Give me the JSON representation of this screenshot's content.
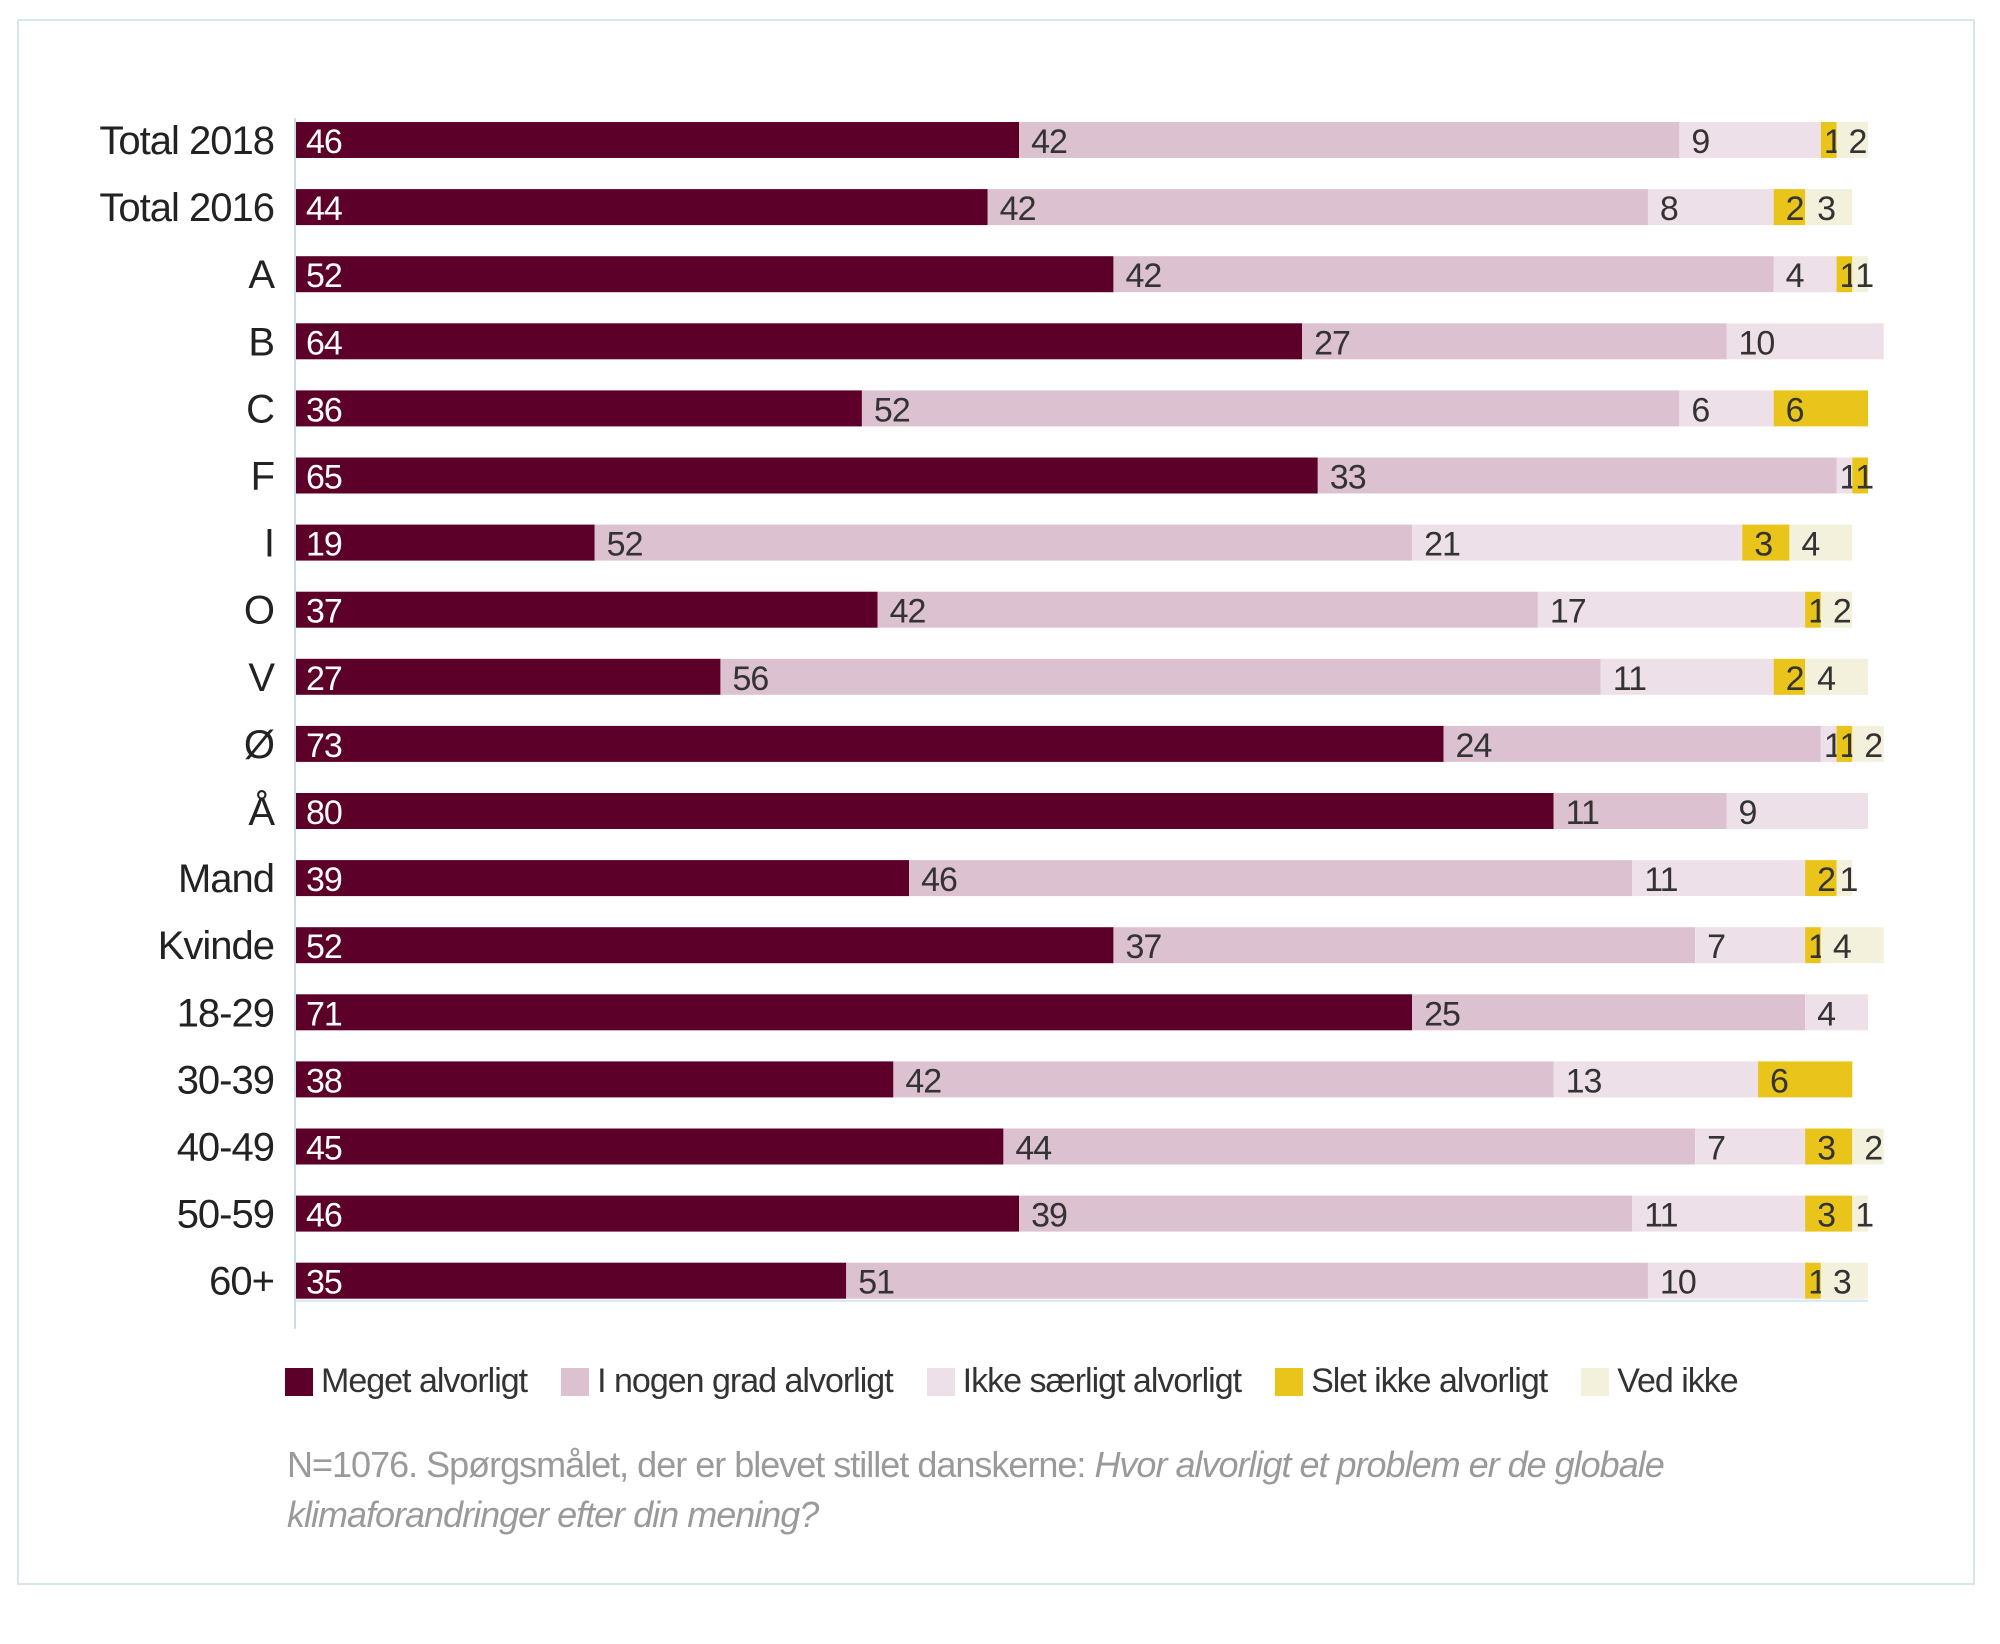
{
  "chart_data": {
    "type": "bar",
    "orientation": "horizontal",
    "stacked": true,
    "categories": [
      "Total 2018",
      "Total 2016",
      "A",
      "B",
      "C",
      "F",
      "I",
      "O",
      "V",
      "Ø",
      "Å",
      "Mand",
      "Kvinde",
      "18-29",
      "30-39",
      "40-49",
      "50-59",
      "60+"
    ],
    "series": [
      {
        "name": "Meget alvorligt",
        "color": "#5c0029",
        "values": [
          46,
          44,
          52,
          64,
          36,
          65,
          19,
          37,
          27,
          73,
          80,
          39,
          52,
          71,
          38,
          45,
          46,
          35
        ]
      },
      {
        "name": "I nogen grad alvorligt",
        "color": "#dcc1d0",
        "values": [
          42,
          42,
          42,
          27,
          52,
          33,
          52,
          42,
          56,
          24,
          11,
          46,
          37,
          25,
          42,
          44,
          39,
          51
        ]
      },
      {
        "name": "Ikke særligt alvorligt",
        "color": "#eee0e9",
        "values": [
          9,
          8,
          4,
          10,
          6,
          1,
          21,
          17,
          11,
          1,
          9,
          11,
          7,
          4,
          13,
          7,
          11,
          10
        ]
      },
      {
        "name": "Slet ikke alvorligt",
        "color": "#e9c51c",
        "values": [
          1,
          2,
          1,
          null,
          6,
          1,
          3,
          1,
          2,
          1,
          null,
          2,
          1,
          null,
          6,
          3,
          3,
          1
        ]
      },
      {
        "name": "Ved ikke",
        "color": "#f3f0dc",
        "values": [
          2,
          3,
          1,
          null,
          null,
          null,
          4,
          2,
          4,
          2,
          null,
          1,
          4,
          null,
          null,
          2,
          1,
          3
        ]
      }
    ],
    "legend_position": "bottom",
    "grid": false,
    "xlim": [
      0,
      100
    ]
  },
  "footnote": {
    "plain": "N=1076. Spørgsmålet, der er blevet stillet danskerne: ",
    "italic": "Hvor alvorligt et problem er de globale klimaforandringer efter din mening?"
  }
}
